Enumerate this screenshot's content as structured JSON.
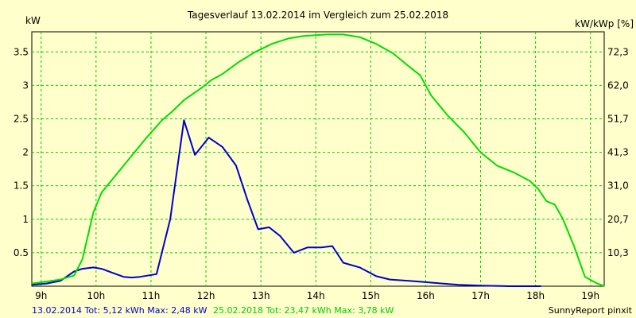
{
  "chart_data": {
    "type": "line",
    "title": "Tagesverlauf 13.02.2014 im Vergleich zum 25.02.2018",
    "ylabel_left": "kW",
    "ylabel_right": "kW/kWp [%]",
    "x_ticks": [
      "9h",
      "10h",
      "11h",
      "12h",
      "13h",
      "14h",
      "15h",
      "16h",
      "17h",
      "18h",
      "19h"
    ],
    "y_ticks_left": [
      "0.5",
      "1",
      "1.5",
      "2",
      "2.5",
      "3",
      "3.5"
    ],
    "y_ticks_right": [
      "10,3",
      "20,7",
      "31,0",
      "41,3",
      "51,7",
      "62,0",
      "72,3"
    ],
    "xlim": [
      8.83,
      19.25
    ],
    "ylim": [
      0,
      3.8
    ],
    "grid": true,
    "series": [
      {
        "color": "#0000cc",
        "x": [
          8.83,
          9.1,
          9.35,
          9.6,
          9.75,
          9.95,
          10.1,
          10.3,
          10.5,
          10.65,
          10.8,
          11.1,
          11.35,
          11.6,
          11.8,
          12.05,
          12.3,
          12.55,
          12.75,
          12.95,
          13.15,
          13.35,
          13.6,
          13.85,
          14.1,
          14.3,
          14.5,
          14.8,
          15.1,
          15.35,
          15.7,
          16.0,
          16.3,
          16.6,
          17.0,
          17.5,
          18.0,
          18.1
        ],
        "y": [
          0.02,
          0.04,
          0.08,
          0.22,
          0.26,
          0.28,
          0.26,
          0.2,
          0.14,
          0.13,
          0.14,
          0.18,
          1.0,
          2.48,
          1.96,
          2.22,
          2.08,
          1.8,
          1.3,
          0.85,
          0.88,
          0.75,
          0.5,
          0.58,
          0.58,
          0.6,
          0.35,
          0.28,
          0.15,
          0.1,
          0.08,
          0.06,
          0.04,
          0.02,
          0.01,
          0.0,
          0.0,
          0.0
        ]
      },
      {
        "color": "#00dd00",
        "x": [
          8.83,
          9.1,
          9.35,
          9.6,
          9.75,
          9.95,
          10.1,
          10.3,
          10.6,
          10.9,
          11.2,
          11.4,
          11.6,
          11.9,
          12.1,
          12.3,
          12.6,
          12.9,
          13.2,
          13.5,
          13.8,
          14.2,
          14.5,
          14.8,
          15.1,
          15.4,
          15.7,
          15.9,
          16.1,
          16.4,
          16.7,
          17.0,
          17.3,
          17.6,
          17.9,
          18.05,
          18.2,
          18.35,
          18.5,
          18.7,
          18.9,
          19.1,
          19.25
        ],
        "y": [
          0.04,
          0.07,
          0.1,
          0.16,
          0.4,
          1.1,
          1.4,
          1.6,
          1.9,
          2.2,
          2.48,
          2.62,
          2.78,
          2.95,
          3.08,
          3.17,
          3.35,
          3.5,
          3.62,
          3.7,
          3.74,
          3.76,
          3.76,
          3.72,
          3.62,
          3.48,
          3.28,
          3.15,
          2.85,
          2.55,
          2.3,
          2.0,
          1.8,
          1.7,
          1.57,
          1.45,
          1.27,
          1.22,
          1.0,
          0.6,
          0.14,
          0.05,
          0.0
        ]
      }
    ],
    "footer": {
      "left_series_1": "13.02.2014 Tot: 5,12 kWh Max: 2,48 kW",
      "left_series_2": "25.02.2018 Tot: 23,47 kWh Max: 3,78 kW",
      "right": "SunnyReport pinxit"
    }
  }
}
